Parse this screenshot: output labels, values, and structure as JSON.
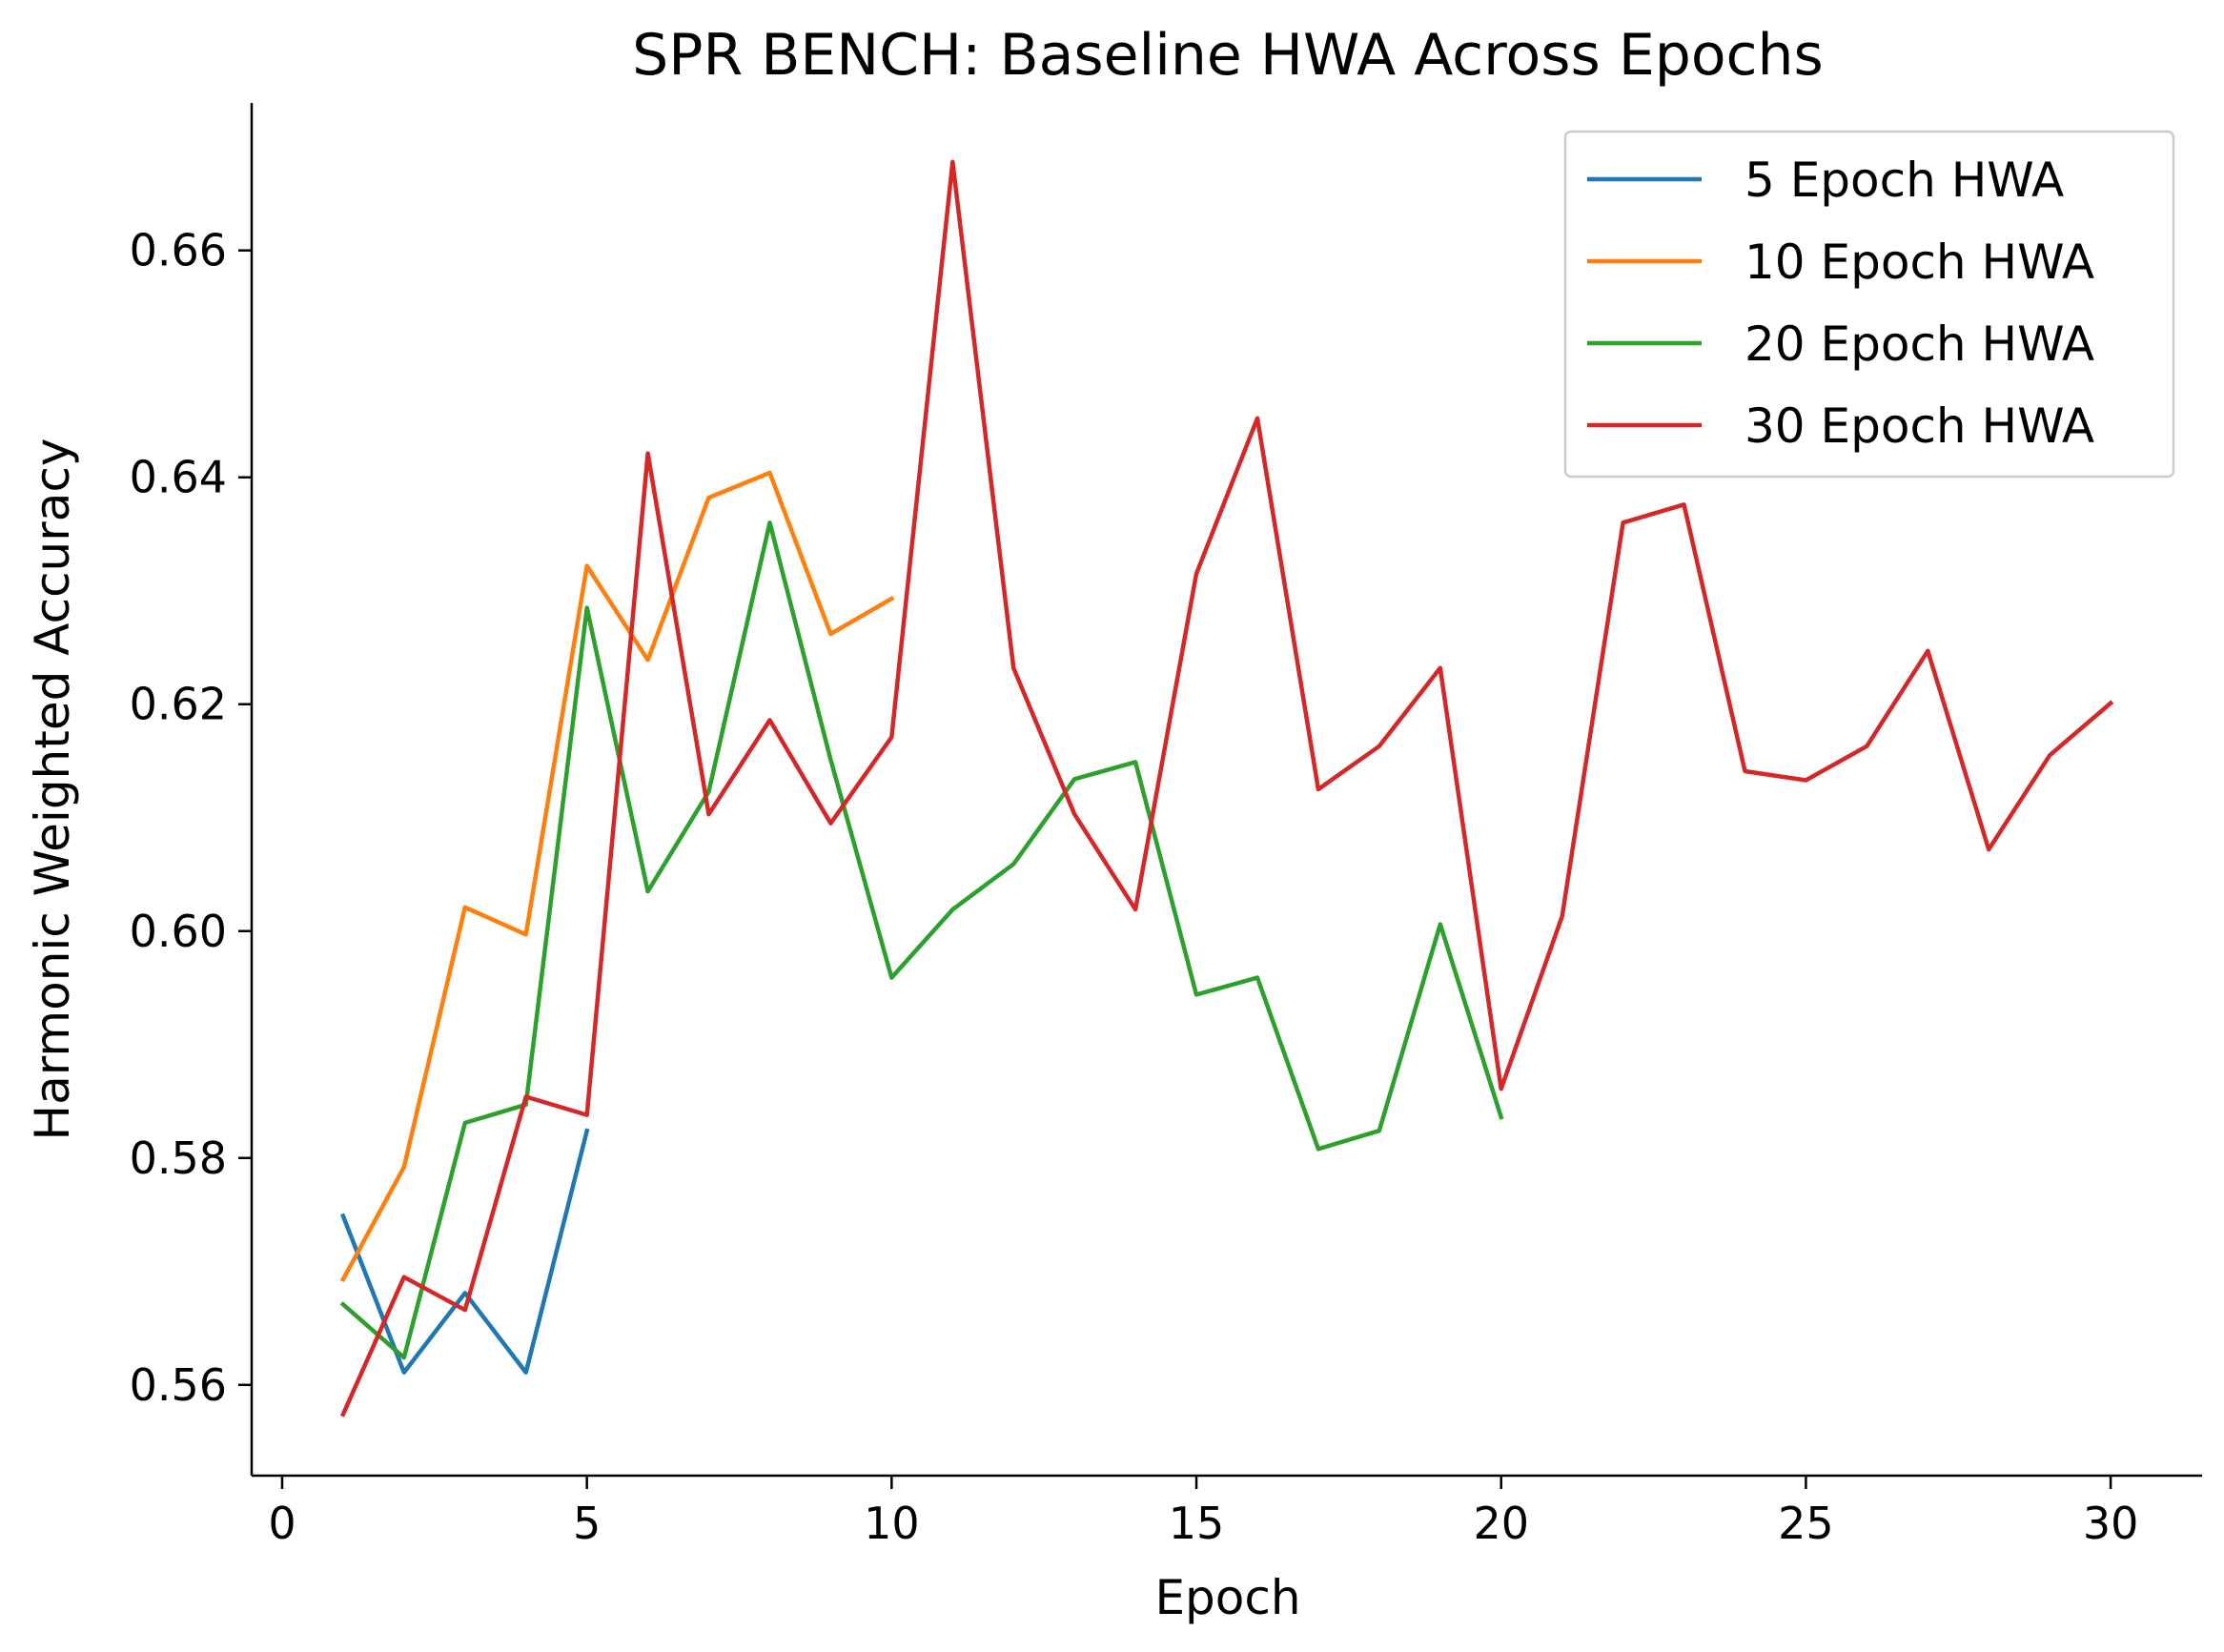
{
  "chart_data": {
    "type": "line",
    "title": "SPR BENCH: Baseline HWA Across Epochs",
    "xlabel": "Epoch",
    "ylabel": "Harmonic Weighted Accuracy",
    "xlim": [
      -0.5,
      31.5
    ],
    "ylim": [
      0.552,
      0.673
    ],
    "xticks": [
      0,
      5,
      10,
      15,
      20,
      25,
      30
    ],
    "xtick_labels": [
      "0",
      "5",
      "10",
      "15",
      "20",
      "25",
      "30"
    ],
    "yticks": [
      0.56,
      0.58,
      0.6,
      0.62,
      0.64,
      0.66
    ],
    "ytick_labels": [
      "0.56",
      "0.58",
      "0.60",
      "0.62",
      "0.64",
      "0.66"
    ],
    "grid": false,
    "legend_position": "top-right",
    "series": [
      {
        "name": "5 Epoch HWA",
        "color": "#1f77b4",
        "x": [
          1,
          2,
          3,
          4,
          5
        ],
        "values": [
          0.5749,
          0.5611,
          0.5681,
          0.5611,
          0.5824
        ]
      },
      {
        "name": "10 Epoch HWA",
        "color": "#ff7f0e",
        "x": [
          1,
          2,
          3,
          4,
          5,
          6,
          7,
          8,
          9,
          10
        ],
        "values": [
          0.5693,
          0.5792,
          0.6021,
          0.5997,
          0.6322,
          0.6239,
          0.6382,
          0.6404,
          0.6262,
          0.6293
        ]
      },
      {
        "name": "20 Epoch HWA",
        "color": "#2ca02c",
        "x": [
          1,
          2,
          3,
          4,
          5,
          6,
          7,
          8,
          9,
          10,
          11,
          12,
          13,
          14,
          15,
          16,
          17,
          18,
          19,
          20
        ],
        "values": [
          0.5671,
          0.5624,
          0.5831,
          0.5847,
          0.6285,
          0.6035,
          0.6123,
          0.636,
          0.6151,
          0.5959,
          0.6019,
          0.6059,
          0.6134,
          0.6149,
          0.5944,
          0.5959,
          0.5808,
          0.5824,
          0.6006,
          0.5836
        ]
      },
      {
        "name": "30 Epoch HWA",
        "color": "#d62728",
        "x": [
          1,
          2,
          3,
          4,
          5,
          6,
          7,
          8,
          9,
          10,
          11,
          12,
          13,
          14,
          15,
          16,
          17,
          18,
          19,
          20,
          21,
          22,
          23,
          24,
          25,
          26,
          27,
          28,
          29,
          30
        ],
        "values": [
          0.5574,
          0.5695,
          0.5666,
          0.5854,
          0.5838,
          0.6421,
          0.6103,
          0.6186,
          0.6095,
          0.6171,
          0.6678,
          0.6232,
          0.6103,
          0.6019,
          0.6315,
          0.6452,
          0.6125,
          0.6163,
          0.6232,
          0.5861,
          0.6013,
          0.636,
          0.6376,
          0.6141,
          0.6133,
          0.6163,
          0.6247,
          0.6072,
          0.6155,
          0.6201
        ]
      }
    ]
  }
}
